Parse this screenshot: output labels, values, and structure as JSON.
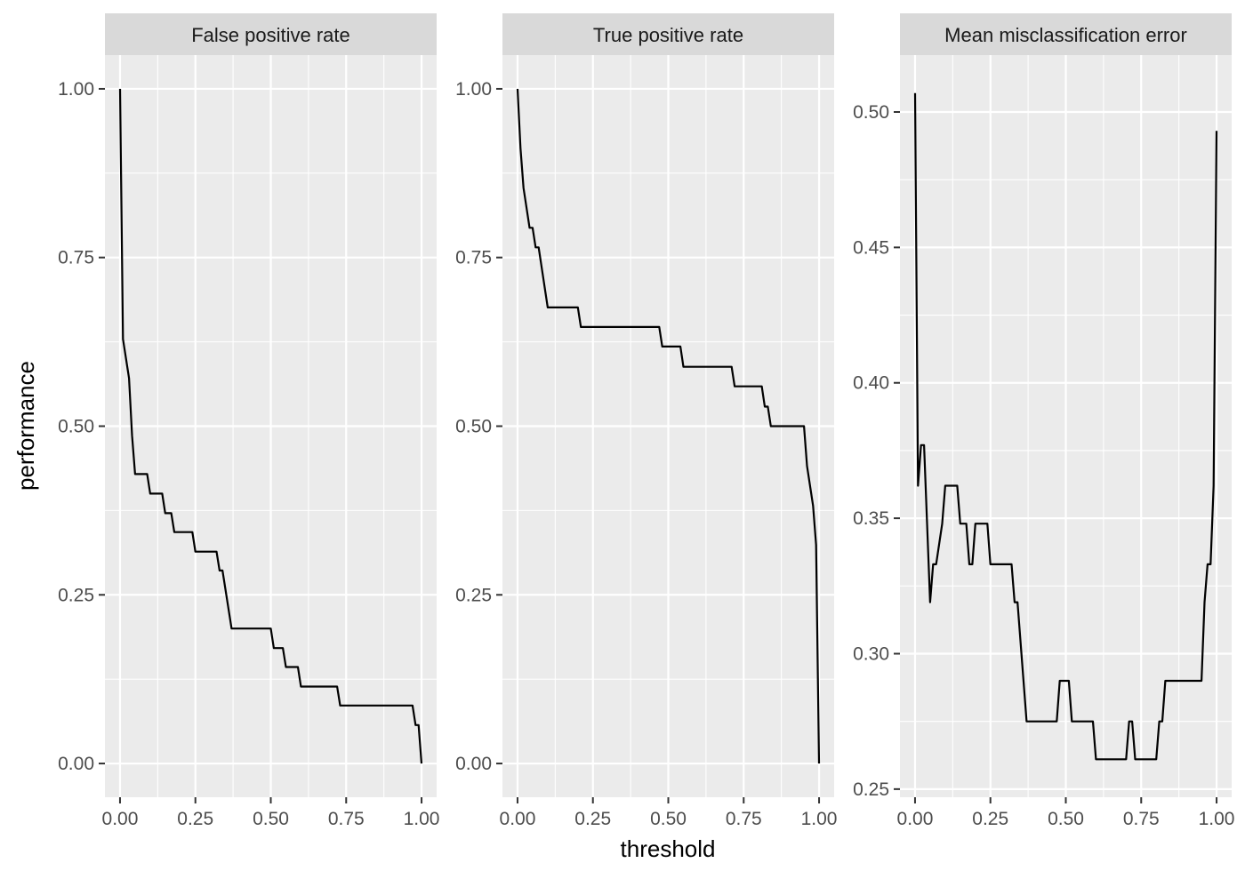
{
  "chart_data": {
    "type": "line",
    "xlabel": "threshold",
    "ylabel": "performance",
    "x_ticks": [
      "0.00",
      "0.25",
      "0.50",
      "0.75",
      "1.00"
    ],
    "x_tick_values": [
      0,
      0.25,
      0.5,
      0.75,
      1
    ],
    "xlim": [
      -0.05,
      1.05
    ],
    "panels": [
      {
        "title": "False positive rate",
        "ylim": [
          -0.05,
          1.05
        ],
        "y_ticks": [
          "0.00",
          "0.25",
          "0.50",
          "0.75",
          "1.00"
        ],
        "y_tick_values": [
          0,
          0.25,
          0.5,
          0.75,
          1
        ],
        "series": [
          {
            "x": [
              0,
              0.01,
              0.03,
              0.04,
              0.05,
              0.09,
              0.1,
              0.14,
              0.15,
              0.17,
              0.18,
              0.24,
              0.25,
              0.32,
              0.33,
              0.34,
              0.37,
              0.5,
              0.51,
              0.54,
              0.55,
              0.59,
              0.6,
              0.72,
              0.73,
              0.97,
              0.98,
              0.99,
              1
            ],
            "y": [
              1,
              0.629,
              0.571,
              0.486,
              0.429,
              0.429,
              0.4,
              0.4,
              0.371,
              0.371,
              0.343,
              0.343,
              0.314,
              0.314,
              0.286,
              0.286,
              0.2,
              0.2,
              0.171,
              0.171,
              0.143,
              0.143,
              0.114,
              0.114,
              0.086,
              0.086,
              0.057,
              0.057,
              0
            ]
          }
        ]
      },
      {
        "title": "True positive rate",
        "ylim": [
          -0.05,
          1.05
        ],
        "y_ticks": [
          "0.00",
          "0.25",
          "0.50",
          "0.75",
          "1.00"
        ],
        "y_tick_values": [
          0,
          0.25,
          0.5,
          0.75,
          1
        ],
        "series": [
          {
            "x": [
              0,
              0.01,
              0.02,
              0.04,
              0.05,
              0.06,
              0.07,
              0.1,
              0.2,
              0.21,
              0.47,
              0.48,
              0.54,
              0.55,
              0.71,
              0.72,
              0.81,
              0.82,
              0.83,
              0.84,
              0.95,
              0.96,
              0.98,
              0.99,
              1
            ],
            "y": [
              1,
              0.912,
              0.853,
              0.794,
              0.794,
              0.765,
              0.765,
              0.676,
              0.676,
              0.647,
              0.647,
              0.618,
              0.618,
              0.588,
              0.588,
              0.559,
              0.559,
              0.529,
              0.529,
              0.5,
              0.5,
              0.441,
              0.382,
              0.324,
              0
            ]
          }
        ]
      },
      {
        "title": "Mean misclassification error",
        "ylim": [
          0.247,
          0.521
        ],
        "y_ticks": [
          "0.25",
          "0.30",
          "0.35",
          "0.40",
          "0.45",
          "0.50"
        ],
        "y_tick_values": [
          0.25,
          0.3,
          0.35,
          0.4,
          0.45,
          0.5
        ],
        "series": [
          {
            "x": [
              0,
              0.01,
              0.02,
              0.03,
              0.04,
              0.05,
              0.06,
              0.07,
              0.09,
              0.1,
              0.14,
              0.15,
              0.17,
              0.18,
              0.19,
              0.2,
              0.21,
              0.24,
              0.25,
              0.32,
              0.33,
              0.34,
              0.37,
              0.47,
              0.48,
              0.51,
              0.52,
              0.59,
              0.6,
              0.7,
              0.71,
              0.72,
              0.73,
              0.79,
              0.8,
              0.81,
              0.82,
              0.83,
              0.84,
              0.95,
              0.96,
              0.97,
              0.98,
              0.99,
              1
            ],
            "y": [
              0.507,
              0.362,
              0.377,
              0.377,
              0.348,
              0.319,
              0.333,
              0.333,
              0.348,
              0.362,
              0.362,
              0.348,
              0.348,
              0.333,
              0.333,
              0.348,
              0.348,
              0.348,
              0.333,
              0.333,
              0.319,
              0.319,
              0.275,
              0.275,
              0.29,
              0.29,
              0.275,
              0.275,
              0.261,
              0.261,
              0.275,
              0.275,
              0.261,
              0.261,
              0.261,
              0.275,
              0.275,
              0.29,
              0.29,
              0.29,
              0.319,
              0.333,
              0.333,
              0.362,
              0.493
            ]
          }
        ]
      }
    ]
  }
}
